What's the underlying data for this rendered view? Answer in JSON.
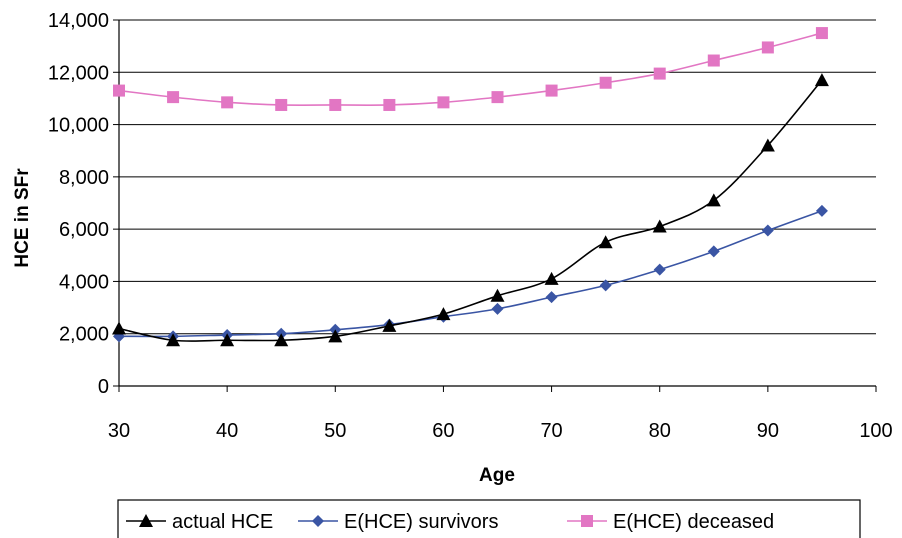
{
  "chart_data": {
    "type": "line",
    "xlabel": "Age",
    "ylabel": "HCE in SFr",
    "xlim": [
      30,
      100
    ],
    "ylim": [
      0,
      14000
    ],
    "x_ticks": [
      "30",
      "40",
      "50",
      "60",
      "70",
      "80",
      "90",
      "100"
    ],
    "y_ticks": [
      "0",
      "2,000",
      "4,000",
      "6,000",
      "8,000",
      "10,000",
      "12,000",
      "14,000"
    ],
    "grid": "horizontal",
    "legend_position": "bottom",
    "x": [
      30,
      35,
      40,
      45,
      50,
      55,
      60,
      65,
      70,
      75,
      80,
      85,
      90,
      95
    ],
    "series": [
      {
        "name": "actual HCE",
        "color": "#000000",
        "marker": "triangle",
        "values": [
          2200,
          1750,
          1750,
          1750,
          1900,
          2300,
          2750,
          3450,
          4100,
          5500,
          6100,
          7100,
          9200,
          11700
        ]
      },
      {
        "name": "E(HCE) survivors",
        "color": "#3a55a4",
        "marker": "diamond",
        "values": [
          1900,
          1900,
          1950,
          2000,
          2150,
          2350,
          2650,
          2950,
          3400,
          3850,
          4450,
          5150,
          5950,
          6700
        ]
      },
      {
        "name": "E(HCE) deceased",
        "color": "#e276c3",
        "marker": "square",
        "values": [
          11300,
          11050,
          10850,
          10750,
          10750,
          10750,
          10850,
          11050,
          11300,
          11600,
          11950,
          12450,
          12950,
          13500
        ]
      }
    ]
  }
}
